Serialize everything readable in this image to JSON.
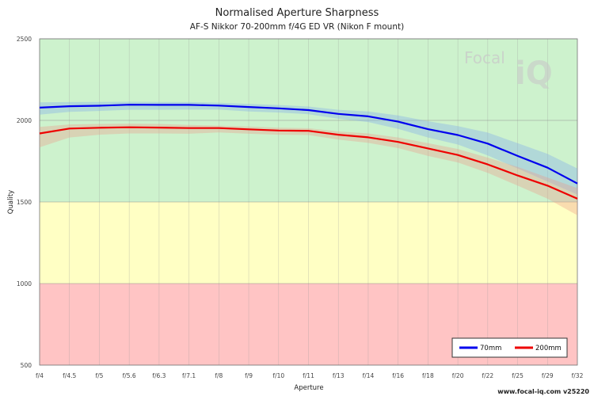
{
  "chart_data": {
    "type": "line",
    "title": "Normalised Aperture Sharpness",
    "subtitle": "AF-S Nikkor 70-200mm f/4G ED VR (Nikon F mount)",
    "xlabel": "Aperture",
    "ylabel": "Quality",
    "ylim": [
      500,
      2500
    ],
    "yticks": [
      500,
      1000,
      1500,
      2000,
      2500
    ],
    "categories": [
      "f/4",
      "f/4.5",
      "f/5",
      "f/5.6",
      "f/6.3",
      "f/7.1",
      "f/8",
      "f/9",
      "f/10",
      "f/11",
      "f/13",
      "f/14",
      "f/16",
      "f/18",
      "f/20",
      "f/22",
      "f/25",
      "f/29",
      "f/32"
    ],
    "bands": [
      {
        "from": 500,
        "to": 1000,
        "color": "#ffc4c4"
      },
      {
        "from": 1000,
        "to": 1500,
        "color": "#ffffc4"
      },
      {
        "from": 1500,
        "to": 2500,
        "color": "#cdf2cd"
      }
    ],
    "grid": true,
    "legend_position": "bottom-right",
    "series": [
      {
        "name": "70mm",
        "color": "#0000ee",
        "band_color": "#7fa8ee",
        "values": [
          2078,
          2087,
          2090,
          2096,
          2095,
          2095,
          2091,
          2082,
          2074,
          2063,
          2040,
          2025,
          1992,
          1946,
          1910,
          1858,
          1782,
          1710,
          1613
        ],
        "upper": [
          2110,
          2112,
          2113,
          2114,
          2113,
          2112,
          2108,
          2101,
          2094,
          2085,
          2065,
          2055,
          2030,
          1995,
          1965,
          1925,
          1860,
          1795,
          1705
        ],
        "lower": [
          2035,
          2052,
          2058,
          2065,
          2065,
          2066,
          2066,
          2055,
          2048,
          2038,
          2010,
          1990,
          1948,
          1895,
          1852,
          1785,
          1705,
          1625,
          1545
        ]
      },
      {
        "name": "200mm",
        "color": "#ee0000",
        "band_color": "#ee9a8a",
        "values": [
          1920,
          1950,
          1955,
          1958,
          1956,
          1953,
          1953,
          1945,
          1938,
          1936,
          1912,
          1896,
          1868,
          1828,
          1788,
          1730,
          1662,
          1600,
          1520
        ],
        "upper": [
          1960,
          1975,
          1978,
          1980,
          1978,
          1972,
          1968,
          1962,
          1955,
          1952,
          1932,
          1920,
          1895,
          1860,
          1825,
          1772,
          1715,
          1650,
          1585
        ],
        "lower": [
          1835,
          1895,
          1912,
          1920,
          1920,
          1918,
          1926,
          1918,
          1912,
          1910,
          1882,
          1862,
          1830,
          1782,
          1742,
          1678,
          1600,
          1520,
          1418
        ]
      }
    ]
  },
  "watermark": {
    "word1": "Focal",
    "word2": "iQ"
  },
  "footer": "www.focal-iq.com  v25220"
}
